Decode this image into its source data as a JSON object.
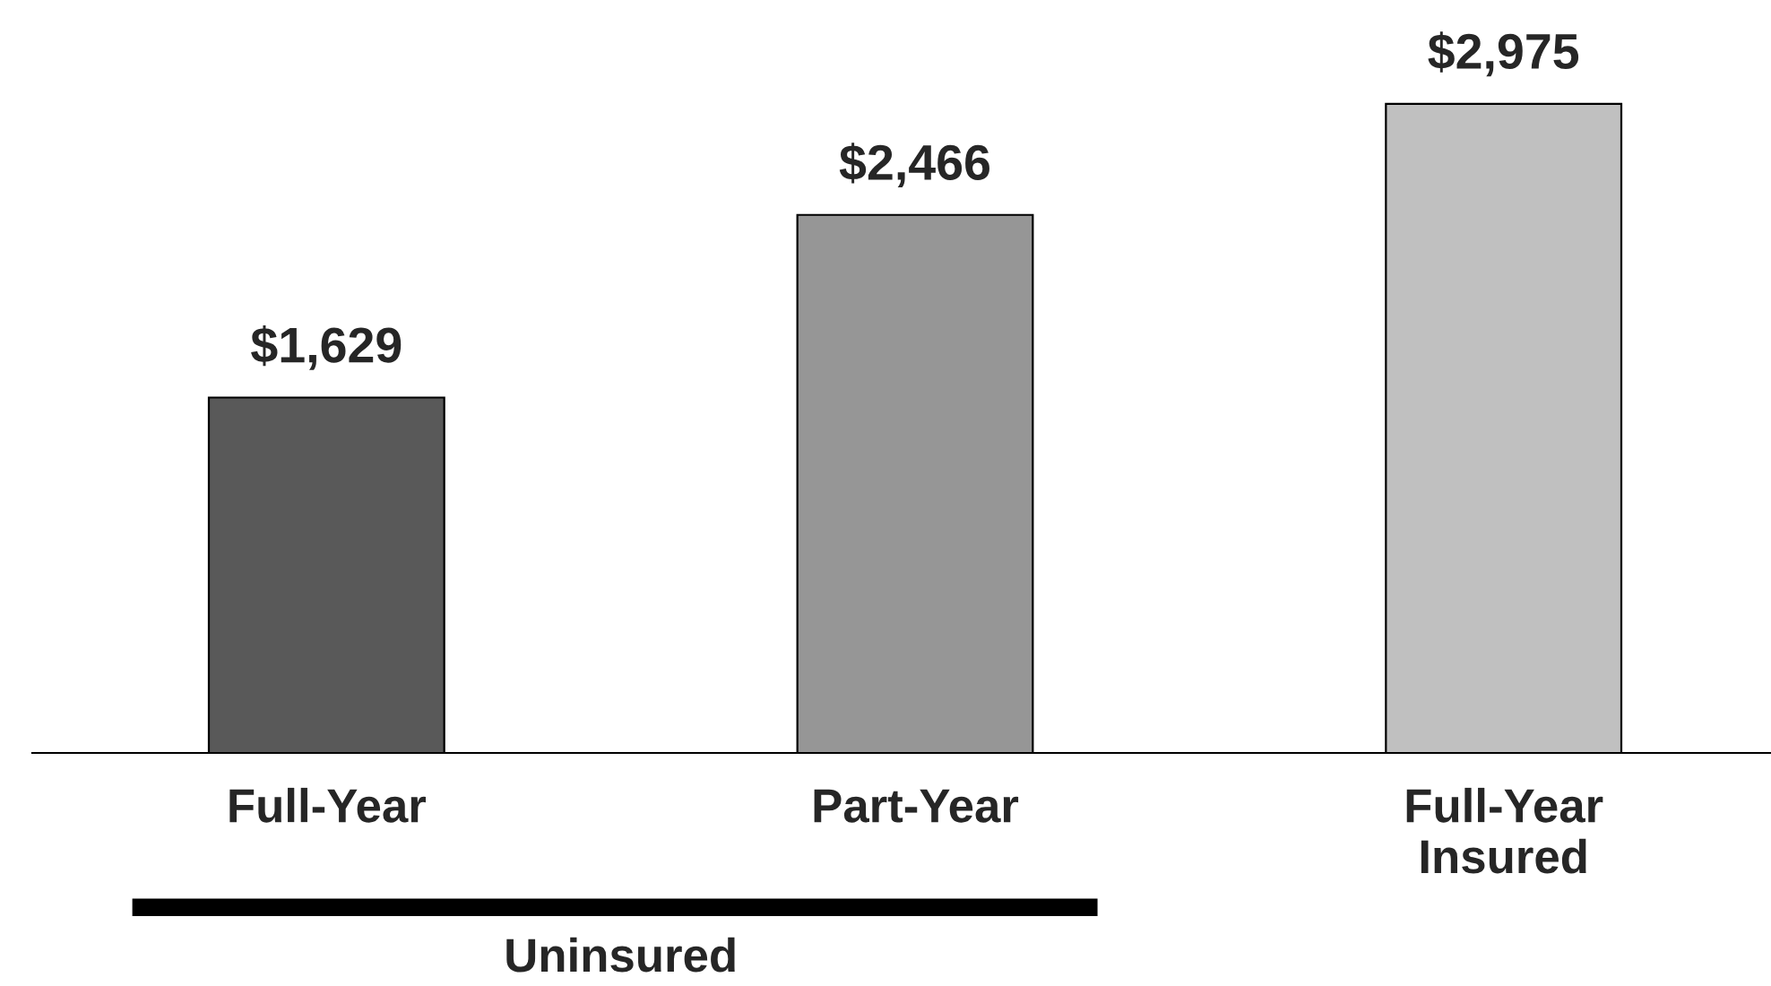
{
  "chart_data": {
    "type": "bar",
    "categories": [
      "Full-Year",
      "Part-Year",
      "Full-Year\nInsured"
    ],
    "values": [
      1629,
      2466,
      2975
    ],
    "colors": [
      "#595959",
      "#969696",
      "#c0c0c0"
    ],
    "value_labels": [
      "$1,629",
      "$2,466",
      "$2,975"
    ],
    "annotations": [
      "Uninsured"
    ],
    "grid": false,
    "legend": false
  }
}
